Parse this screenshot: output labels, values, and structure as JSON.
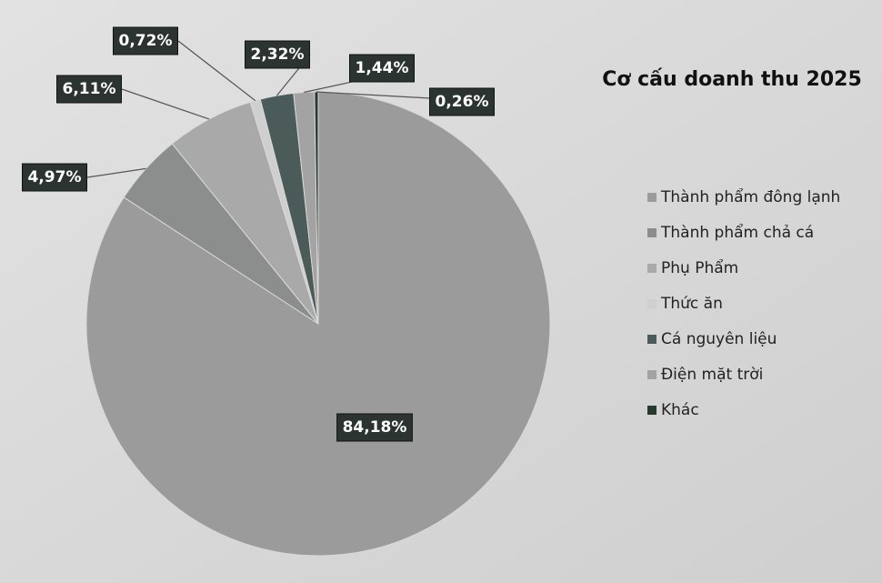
{
  "chart_data": {
    "type": "pie",
    "title": "Cơ cấu doanh thu 2025",
    "categories": [
      "Thành phẩm đông lạnh",
      "Thành phẩm chả cá",
      "Phụ Phẩm",
      "Thức ăn",
      "Cá nguyên liệu",
      "Điện mặt trời",
      "Khác"
    ],
    "values": [
      84.18,
      4.97,
      6.11,
      0.72,
      2.32,
      1.44,
      0.26
    ],
    "value_labels": [
      "84,18%",
      "4,97%",
      "6,11%",
      "0,72%",
      "2,32%",
      "1,44%",
      "0,26%"
    ],
    "colors": [
      "#9b9b9b",
      "#8c8e8e",
      "#a9a9a9",
      "#cfcfcf",
      "#4b5b59",
      "#a3a3a3",
      "#263a2e"
    ],
    "legend": "right"
  }
}
